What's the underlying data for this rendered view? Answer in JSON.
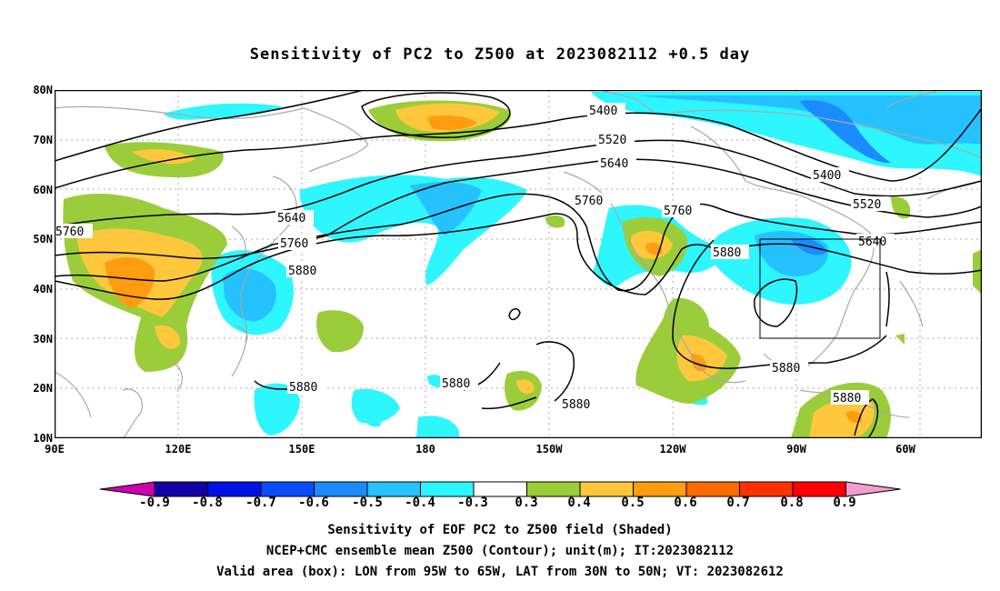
{
  "title": "Sensitivity of PC2 to Z500 at 2023082112 +0.5 day",
  "lat_labels": [
    "80N",
    "70N",
    "60N",
    "50N",
    "40N",
    "30N",
    "20N",
    "10N"
  ],
  "lon_labels": [
    "90E",
    "120E",
    "150E",
    "180",
    "150W",
    "120W",
    "90W",
    "60W"
  ],
  "contour_labels": [
    "5400",
    "5520",
    "5640",
    "5760",
    "5880",
    "5400",
    "5520",
    "5640",
    "5760",
    "5880",
    "5880",
    "5880",
    "5880",
    "5880",
    "5880",
    "5760",
    "5640",
    "5760"
  ],
  "colorbar": {
    "labels": [
      "-0.9",
      "-0.8",
      "-0.7",
      "-0.6",
      "-0.5",
      "-0.4",
      "-0.3",
      "0.3",
      "0.4",
      "0.5",
      "0.6",
      "0.7",
      "0.8",
      "0.9"
    ],
    "colors": [
      "#ce00b0",
      "#1200a6",
      "#0010e6",
      "#0a4cff",
      "#1a8cff",
      "#25c2ff",
      "#2ef6ff",
      "#ffffff",
      "#9bcd3a",
      "#ffc83c",
      "#ff9c10",
      "#ff6a00",
      "#ff3200",
      "#ff0000",
      "#f49bd1"
    ]
  },
  "valid_box": {
    "lon_from": "95W",
    "lon_to": "65W",
    "lat_from": "30N",
    "lat_to": "50N"
  },
  "footer": [
    "Sensitivity of EOF PC2 to Z500 field (Shaded)",
    "NCEP+CMC ensemble mean Z500 (Contour); unit(m); IT:2023082112",
    "Valid area (box): LON from 95W to 65W, LAT from 30N to 50N; VT: 2023082612"
  ]
}
